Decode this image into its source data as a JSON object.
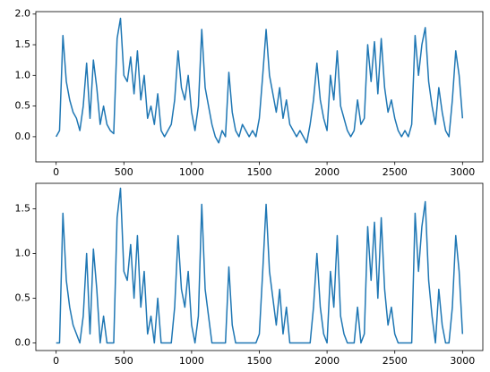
{
  "chart_data": [
    {
      "type": "line",
      "color": "#1f77b4",
      "x": [
        0,
        25,
        50,
        75,
        100,
        125,
        150,
        175,
        200,
        225,
        250,
        275,
        300,
        325,
        350,
        375,
        400,
        425,
        450,
        475,
        500,
        525,
        550,
        575,
        600,
        625,
        650,
        675,
        700,
        725,
        750,
        775,
        800,
        825,
        850,
        875,
        900,
        925,
        950,
        975,
        1000,
        1025,
        1050,
        1075,
        1100,
        1125,
        1150,
        1175,
        1200,
        1225,
        1250,
        1275,
        1300,
        1325,
        1350,
        1375,
        1400,
        1425,
        1450,
        1475,
        1500,
        1525,
        1550,
        1575,
        1600,
        1625,
        1650,
        1675,
        1700,
        1725,
        1750,
        1775,
        1800,
        1825,
        1850,
        1875,
        1900,
        1925,
        1950,
        1975,
        2000,
        2025,
        2050,
        2075,
        2100,
        2125,
        2150,
        2175,
        2200,
        2225,
        2250,
        2275,
        2300,
        2325,
        2350,
        2375,
        2400,
        2425,
        2450,
        2475,
        2500,
        2525,
        2550,
        2575,
        2600,
        2625,
        2650,
        2675,
        2700,
        2725,
        2750,
        2775,
        2800,
        2825,
        2850,
        2875,
        2900,
        2925,
        2950,
        2975,
        3000
      ],
      "values": [
        0.0,
        0.1,
        1.65,
        0.9,
        0.6,
        0.4,
        0.3,
        0.1,
        0.5,
        1.2,
        0.3,
        1.25,
        0.8,
        0.2,
        0.5,
        0.2,
        0.1,
        0.05,
        1.6,
        1.93,
        1.0,
        0.9,
        1.3,
        0.7,
        1.4,
        0.6,
        1.0,
        0.3,
        0.5,
        0.2,
        0.7,
        0.1,
        0.0,
        0.1,
        0.2,
        0.6,
        1.4,
        0.8,
        0.6,
        1.0,
        0.4,
        0.1,
        0.5,
        1.75,
        0.8,
        0.5,
        0.2,
        0.0,
        -0.1,
        0.1,
        0.0,
        1.05,
        0.4,
        0.1,
        0.0,
        0.2,
        0.1,
        0.0,
        0.1,
        0.0,
        0.3,
        1.0,
        1.75,
        1.0,
        0.7,
        0.4,
        0.8,
        0.3,
        0.6,
        0.2,
        0.1,
        0.0,
        0.1,
        0.0,
        -0.1,
        0.2,
        0.6,
        1.2,
        0.6,
        0.3,
        0.1,
        1.0,
        0.6,
        1.4,
        0.5,
        0.3,
        0.1,
        0.0,
        0.1,
        0.6,
        0.2,
        0.3,
        1.5,
        0.9,
        1.55,
        0.7,
        1.6,
        0.8,
        0.4,
        0.6,
        0.3,
        0.1,
        0.0,
        0.1,
        0.0,
        0.2,
        1.65,
        1.0,
        1.5,
        1.78,
        0.9,
        0.5,
        0.2,
        0.8,
        0.4,
        0.1,
        0.0,
        0.6,
        1.4,
        1.0,
        0.3
      ],
      "xlim": [
        -150,
        3150
      ],
      "ylim": [
        -0.41,
        2.04
      ],
      "xticks": [
        0,
        500,
        1000,
        1500,
        2000,
        2500,
        3000
      ],
      "yticks": [
        {
          "value": 0,
          "label": "0.0"
        },
        0.5,
        {
          "value": 1,
          "label": "1.0"
        },
        1.5,
        {
          "value": 2,
          "label": "2.0"
        }
      ]
    },
    {
      "type": "line",
      "color": "#1f77b4",
      "x": [
        0,
        25,
        50,
        75,
        100,
        125,
        150,
        175,
        200,
        225,
        250,
        275,
        300,
        325,
        350,
        375,
        400,
        425,
        450,
        475,
        500,
        525,
        550,
        575,
        600,
        625,
        650,
        675,
        700,
        725,
        750,
        775,
        800,
        825,
        850,
        875,
        900,
        925,
        950,
        975,
        1000,
        1025,
        1050,
        1075,
        1100,
        1125,
        1150,
        1175,
        1200,
        1225,
        1250,
        1275,
        1300,
        1325,
        1350,
        1375,
        1400,
        1425,
        1450,
        1475,
        1500,
        1525,
        1550,
        1575,
        1600,
        1625,
        1650,
        1675,
        1700,
        1725,
        1750,
        1775,
        1800,
        1825,
        1850,
        1875,
        1900,
        1925,
        1950,
        1975,
        2000,
        2025,
        2050,
        2075,
        2100,
        2125,
        2150,
        2175,
        2200,
        2225,
        2250,
        2275,
        2300,
        2325,
        2350,
        2375,
        2400,
        2425,
        2450,
        2475,
        2500,
        2525,
        2550,
        2575,
        2600,
        2625,
        2650,
        2675,
        2700,
        2725,
        2750,
        2775,
        2800,
        2825,
        2850,
        2875,
        2900,
        2925,
        2950,
        2975,
        3000
      ],
      "values": [
        0,
        0,
        1.45,
        0.7,
        0.4,
        0.2,
        0.1,
        0,
        0.3,
        1.0,
        0.1,
        1.05,
        0.6,
        0,
        0.3,
        0,
        0,
        0,
        1.4,
        1.73,
        0.8,
        0.7,
        1.1,
        0.5,
        1.2,
        0.4,
        0.8,
        0.1,
        0.3,
        0,
        0.5,
        0,
        0,
        0,
        0,
        0.4,
        1.2,
        0.6,
        0.4,
        0.8,
        0.2,
        0,
        0.3,
        1.55,
        0.6,
        0.3,
        0,
        0,
        0,
        0,
        0,
        0.85,
        0.2,
        0,
        0,
        0,
        0,
        0,
        0,
        0,
        0.1,
        0.8,
        1.55,
        0.8,
        0.5,
        0.2,
        0.6,
        0.1,
        0.4,
        0,
        0,
        0,
        0,
        0,
        0,
        0,
        0.4,
        1.0,
        0.4,
        0.1,
        0,
        0.8,
        0.4,
        1.2,
        0.3,
        0.1,
        0,
        0,
        0,
        0.4,
        0,
        0.1,
        1.3,
        0.7,
        1.35,
        0.5,
        1.4,
        0.6,
        0.2,
        0.4,
        0.1,
        0,
        0,
        0,
        0,
        0,
        1.45,
        0.8,
        1.3,
        1.58,
        0.7,
        0.3,
        0,
        0.6,
        0.2,
        0,
        0,
        0.4,
        1.2,
        0.8,
        0.1
      ],
      "xlim": [
        -150,
        3150
      ],
      "ylim": [
        -0.085,
        1.785
      ],
      "xticks": [
        0,
        500,
        1000,
        1500,
        2000,
        2500,
        3000
      ],
      "yticks": [
        {
          "value": 0,
          "label": "0.0"
        },
        0.5,
        {
          "value": 1,
          "label": "1.0"
        },
        1.5
      ]
    }
  ]
}
